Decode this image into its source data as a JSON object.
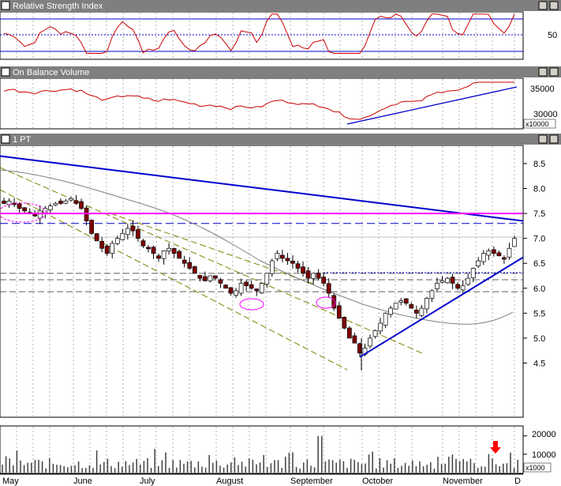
{
  "panels": {
    "rsi": {
      "title": "Relative Strength Index",
      "ytick": "50"
    },
    "obv": {
      "title": "On Balance Volume",
      "yticks": [
        "35000",
        "30000"
      ],
      "unit": "x10000"
    },
    "price": {
      "title": "1 PT"
    },
    "volume": {
      "yticks": [
        "20000",
        "10000"
      ],
      "unit": "x1000"
    }
  },
  "months": [
    "May",
    "June",
    "July",
    "August",
    "September",
    "October",
    "November",
    "D"
  ],
  "colors": {
    "titlebar": "#7f7f7f",
    "up_candle": "#ffffff",
    "down_candle": "#800000",
    "trendline": "#0000cc",
    "resistance": "#ff00ff",
    "channel": "#808000",
    "ma": "#808080",
    "rsi_line": "#cc0000",
    "arrow": "#ff0000"
  },
  "chart_data": {
    "type": "candlestick",
    "price_yticks": [
      8.5,
      8.0,
      7.5,
      7.0,
      6.5,
      6.0,
      5.5,
      5.0,
      4.5
    ],
    "price_ylim": [
      4.3,
      8.75
    ],
    "close_series": [
      7.7,
      7.75,
      7.7,
      7.6,
      7.55,
      7.5,
      7.45,
      7.55,
      7.6,
      7.65,
      7.7,
      7.7,
      7.75,
      7.8,
      7.7,
      7.6,
      7.35,
      7.1,
      6.95,
      6.8,
      6.7,
      6.9,
      7.0,
      7.1,
      7.2,
      7.15,
      7.0,
      6.85,
      6.8,
      6.7,
      6.6,
      6.75,
      6.8,
      6.7,
      6.6,
      6.5,
      6.4,
      6.3,
      6.2,
      6.15,
      6.25,
      6.2,
      6.1,
      6.0,
      5.9,
      5.95,
      6.1,
      6.05,
      6.0,
      5.95,
      6.1,
      6.3,
      6.55,
      6.7,
      6.6,
      6.55,
      6.5,
      6.4,
      6.3,
      6.2,
      6.3,
      6.2,
      6.1,
      5.9,
      5.6,
      5.4,
      5.2,
      5.0,
      4.9,
      4.7,
      4.8,
      5.0,
      5.15,
      5.3,
      5.5,
      5.6,
      5.7,
      5.75,
      5.7,
      5.6,
      5.5,
      5.6,
      5.8,
      5.95,
      6.1,
      6.15,
      6.2,
      6.1,
      6.0,
      6.05,
      6.2,
      6.4,
      6.55,
      6.7,
      6.75,
      6.7,
      6.65,
      6.6,
      6.8,
      7.0
    ],
    "trendlines": [
      {
        "label": "descending resistance",
        "from": [
          "Apr-27",
          8.65
        ],
        "to": [
          "Dec-01",
          7.35
        ]
      },
      {
        "label": "rising support",
        "from": [
          "Sep-28",
          4.62
        ],
        "to": [
          "Dec-01",
          6.62
        ]
      },
      {
        "label": "horizontal resistance",
        "value": 7.5
      }
    ],
    "dashed_levels": [
      7.3,
      6.3,
      6.17,
      5.93
    ],
    "obv_yticks": [
      35000,
      30000
    ],
    "obv_ylim": [
      27500,
      36500
    ],
    "rsi_levels": [
      70,
      50,
      30
    ],
    "rsi_ylim": [
      18,
      82
    ],
    "volume_yticks": [
      20000,
      10000
    ],
    "volume_ylim": [
      0,
      25000
    ],
    "volume_spikes": [
      {
        "month": "September",
        "value": 20000
      }
    ],
    "annotations": [
      "red down arrow above late-November volume bar"
    ]
  }
}
